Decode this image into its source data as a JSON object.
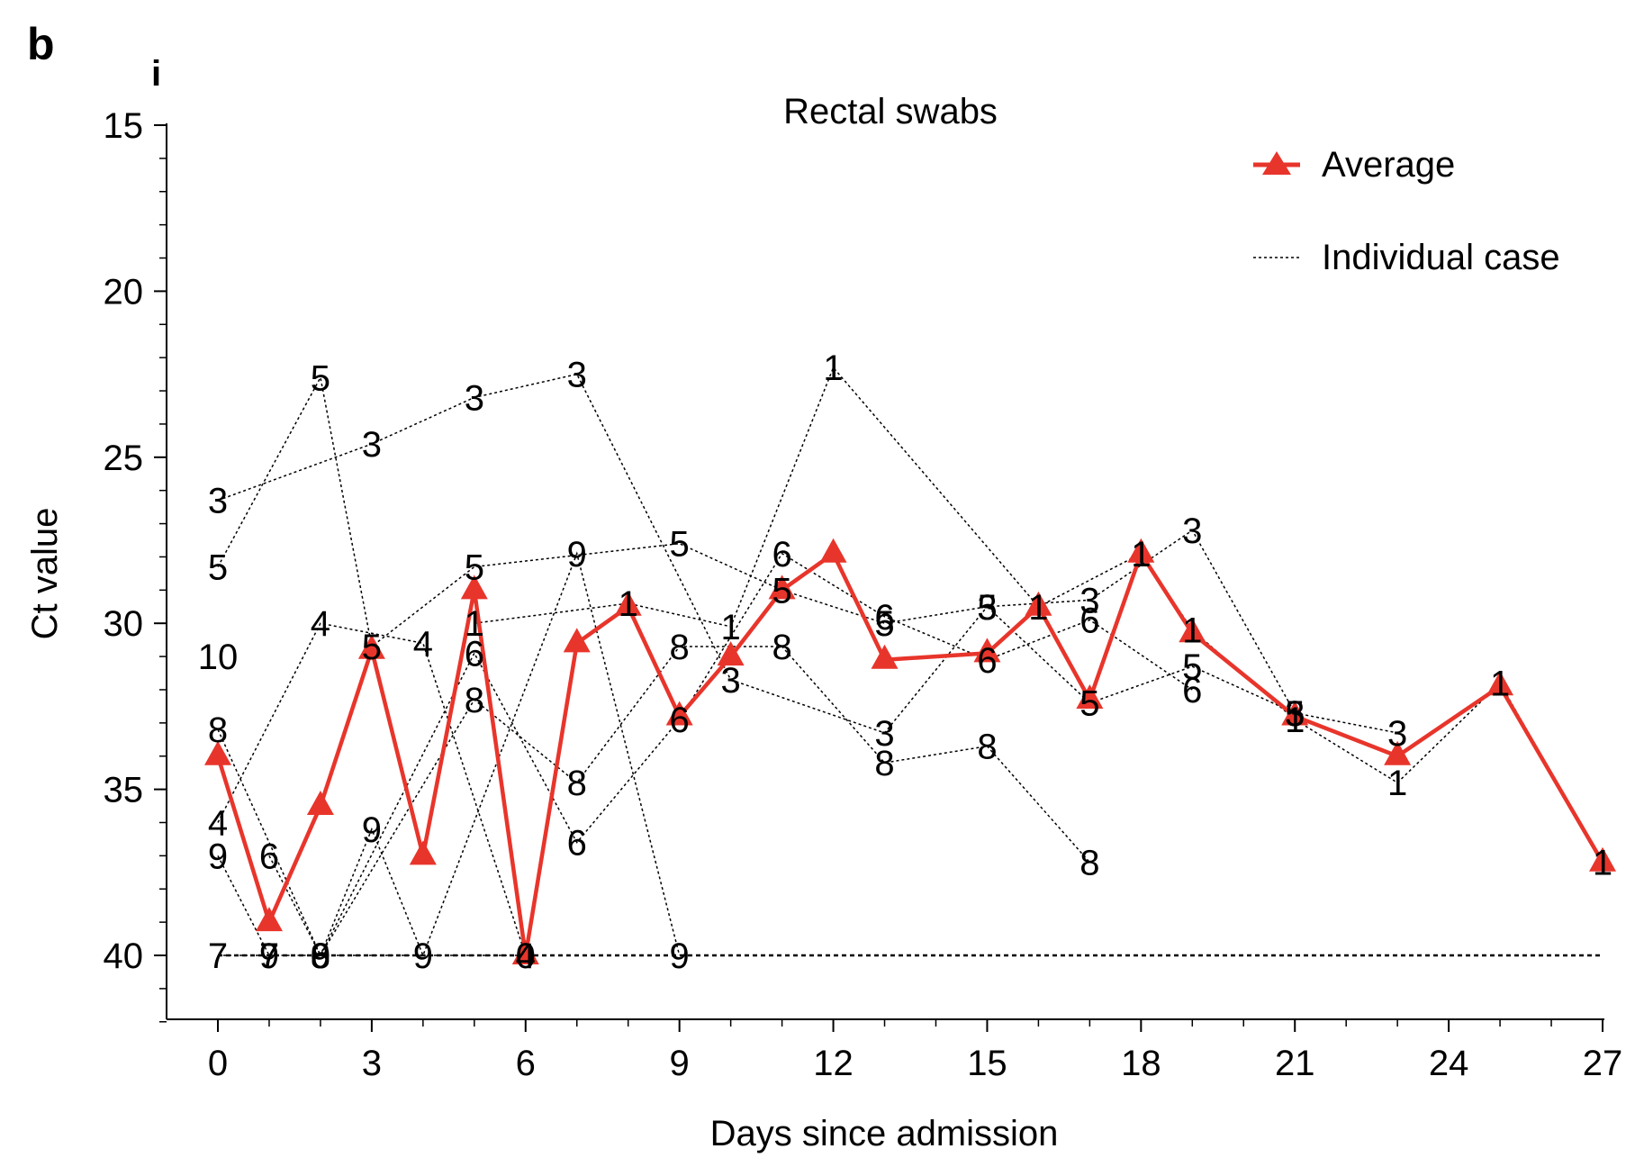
{
  "panel_letter": "b",
  "sub_letter": "i",
  "chart_data": {
    "type": "line",
    "title": "Rectal swabs",
    "xlabel": "Days since admission",
    "ylabel": "Ct value",
    "xlim": [
      -1.7,
      27
    ],
    "ylim": [
      15,
      42
    ],
    "y_inverted": true,
    "x_ticks": [
      0,
      3,
      6,
      9,
      12,
      15,
      18,
      21,
      24,
      27
    ],
    "y_ticks": [
      15,
      20,
      25,
      30,
      35,
      40
    ],
    "legend": {
      "position": "top-right",
      "entries": [
        {
          "label": "Average",
          "style": "red-line-triangle"
        },
        {
          "label": "Individual case",
          "style": "black-dotted"
        }
      ]
    },
    "colors": {
      "average": "#e8352b",
      "individual": "#000000"
    },
    "detection_limit": 40,
    "average": {
      "name": "Average",
      "x": [
        0,
        1,
        2,
        3,
        4,
        5,
        6,
        7,
        8,
        9,
        10,
        11,
        12,
        13,
        15,
        16,
        17,
        18,
        19,
        21,
        23,
        25,
        27
      ],
      "y": [
        34.0,
        39.0,
        35.5,
        30.8,
        37.0,
        29.0,
        40.0,
        30.6,
        29.5,
        32.8,
        31.0,
        29.0,
        27.9,
        31.1,
        30.9,
        29.5,
        32.3,
        27.9,
        30.3,
        32.8,
        34.0,
        31.9,
        37.2
      ]
    },
    "cases": [
      {
        "label": "1",
        "x": [
          5,
          8,
          10,
          12,
          16,
          18,
          19,
          21,
          23,
          25,
          27
        ],
        "y": [
          30.0,
          29.4,
          30.1,
          22.3,
          29.5,
          27.9,
          30.2,
          32.9,
          34.8,
          31.8,
          37.2
        ]
      },
      {
        "label": "3",
        "x": [
          0,
          3,
          5,
          7,
          10,
          13,
          15,
          17,
          19,
          21,
          23
        ],
        "y": [
          26.3,
          24.6,
          23.2,
          22.5,
          31.7,
          33.3,
          29.5,
          29.3,
          27.2,
          32.7,
          33.3
        ]
      },
      {
        "label": "4",
        "x": [
          0,
          2,
          4,
          6
        ],
        "y": [
          36.0,
          30.0,
          30.6,
          40.0
        ]
      },
      {
        "label": "5",
        "x": [
          0,
          2,
          3,
          5,
          9,
          11,
          13,
          15,
          17,
          19,
          21
        ],
        "y": [
          28.3,
          22.6,
          30.7,
          28.3,
          27.6,
          29.0,
          30.0,
          29.5,
          32.4,
          31.3,
          32.7
        ]
      },
      {
        "label": "6",
        "x": [
          1,
          2,
          5,
          7,
          9,
          11,
          13,
          15,
          17,
          19
        ],
        "y": [
          37.0,
          40.0,
          30.9,
          36.6,
          32.9,
          27.9,
          29.8,
          31.1,
          29.9,
          32.0
        ]
      },
      {
        "label": "7",
        "x": [
          0,
          1
        ],
        "y": [
          40.0,
          40.0
        ]
      },
      {
        "label": "8",
        "x": [
          0,
          2,
          5,
          7,
          9,
          11,
          13,
          15,
          17
        ],
        "y": [
          33.2,
          40.0,
          32.3,
          34.8,
          30.7,
          30.7,
          34.2,
          33.7,
          37.2
        ]
      },
      {
        "label": "9",
        "x": [
          0,
          1,
          2,
          3,
          4,
          7,
          9
        ],
        "y": [
          37.0,
          40.0,
          40.0,
          36.2,
          40.0,
          27.9,
          40.0
        ]
      },
      {
        "label": "10",
        "x": [
          0
        ],
        "y": [
          31.0
        ]
      },
      {
        "label": "0",
        "x": [
          2,
          6
        ],
        "y": [
          40.0,
          40.0
        ]
      }
    ]
  }
}
